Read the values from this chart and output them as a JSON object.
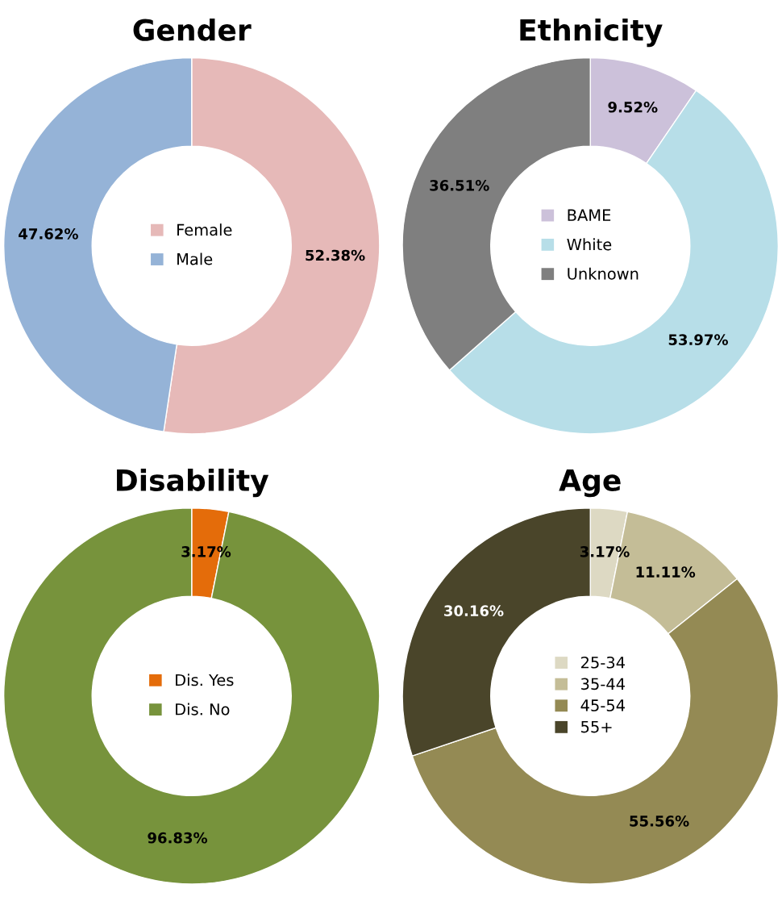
{
  "chart_data": [
    {
      "type": "donut",
      "title": "Gender",
      "categories": [
        "Female",
        "Male"
      ],
      "values": [
        52.38,
        47.62
      ],
      "colors": [
        "#e6b9b8",
        "#95b3d7"
      ],
      "value_labels": [
        "52.38%",
        "47.62%"
      ],
      "legend": "center"
    },
    {
      "type": "donut",
      "title": "Ethnicity",
      "categories": [
        "BAME",
        "White",
        "Unknown"
      ],
      "values": [
        9.52,
        53.97,
        36.51
      ],
      "colors": [
        "#ccc1da",
        "#b7dee8",
        "#7f7f7f"
      ],
      "value_labels": [
        "9.52%",
        "53.97%",
        "36.51%"
      ],
      "legend": "center"
    },
    {
      "type": "donut",
      "title": "Disability",
      "categories": [
        "Dis. Yes",
        "Dis. No"
      ],
      "values": [
        3.17,
        96.83
      ],
      "colors": [
        "#e46c0a",
        "#77933c"
      ],
      "value_labels": [
        "3.17%",
        "96.83%"
      ],
      "legend": "center"
    },
    {
      "type": "donut",
      "title": "Age",
      "categories": [
        "25-34",
        "35-44",
        "45-54",
        "55+"
      ],
      "values": [
        3.17,
        11.11,
        55.56,
        30.16
      ],
      "colors": [
        "#ddd9c3",
        "#c4bd97",
        "#948a54",
        "#4a452a"
      ],
      "value_labels": [
        "3.17%",
        "11.11%",
        "55.56%",
        "30.16%"
      ],
      "legend": "center"
    }
  ]
}
